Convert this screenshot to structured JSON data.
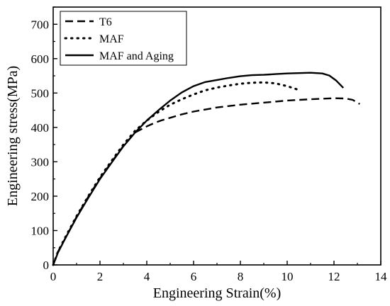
{
  "chart_data": {
    "type": "line",
    "title": "",
    "xlabel": "Engineering  Strain(%)",
    "ylabel": "Engineering stress(MPa)",
    "xlim": [
      0,
      14
    ],
    "ylim": [
      0,
      750
    ],
    "xticks": [
      0,
      2,
      4,
      6,
      8,
      10,
      12,
      14
    ],
    "yticks": [
      0,
      100,
      200,
      300,
      400,
      500,
      600,
      700
    ],
    "grid": false,
    "legend_position": "top-left",
    "series": [
      {
        "name": "T6",
        "style": "dashed",
        "color": "#000000",
        "x": [
          0,
          0.2,
          0.5,
          1,
          1.5,
          2,
          2.5,
          3,
          3.5,
          4,
          4.3,
          4.6,
          5,
          5.5,
          6,
          7,
          8,
          9,
          10,
          11,
          12,
          12.5,
          12.8,
          13.1
        ],
        "y": [
          0,
          38,
          75,
          140,
          198,
          252,
          300,
          346,
          385,
          403,
          412,
          420,
          428,
          438,
          446,
          458,
          466,
          472,
          478,
          482,
          485,
          484,
          480,
          468
        ]
      },
      {
        "name": "MAF",
        "style": "dotted",
        "color": "#000000",
        "x": [
          0,
          0.2,
          0.5,
          1,
          1.5,
          2,
          2.5,
          3,
          3.5,
          4,
          4.5,
          5,
          5.5,
          6,
          6.5,
          7,
          7.5,
          8,
          8.5,
          9,
          9.5,
          10,
          10.5
        ],
        "y": [
          0,
          38,
          78,
          142,
          200,
          255,
          303,
          350,
          390,
          420,
          445,
          466,
          482,
          496,
          508,
          516,
          522,
          527,
          530,
          531,
          528,
          520,
          509
        ]
      },
      {
        "name": "MAF and Aging",
        "style": "solid",
        "color": "#000000",
        "x": [
          0,
          0.2,
          0.5,
          1,
          1.5,
          2,
          2.5,
          3,
          3.5,
          4,
          4.5,
          5,
          5.5,
          6,
          6.5,
          7,
          7.5,
          8,
          8.5,
          9,
          9.5,
          10,
          10.5,
          11,
          11.5,
          11.8,
          12.1,
          12.4
        ],
        "y": [
          0,
          35,
          75,
          138,
          195,
          250,
          298,
          345,
          385,
          420,
          450,
          478,
          502,
          520,
          532,
          538,
          544,
          549,
          552,
          553,
          555,
          557,
          558,
          559,
          557,
          551,
          536,
          515
        ]
      }
    ]
  }
}
